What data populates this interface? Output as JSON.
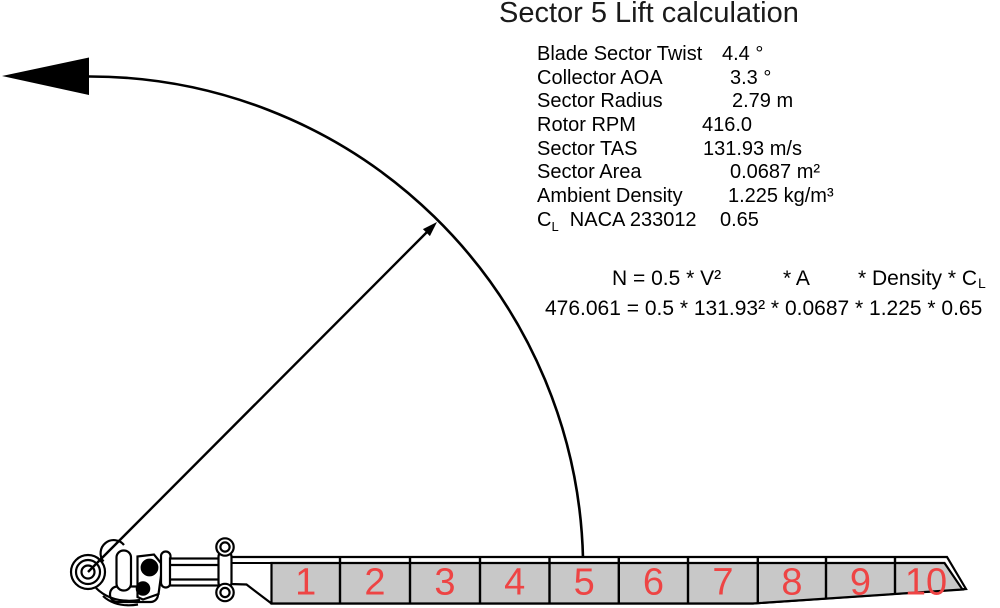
{
  "title": "Sector 5 Lift calculation",
  "parameters": {
    "rows": [
      {
        "label": "Blade Sector Twist",
        "value": "4.4 °"
      },
      {
        "label": "Collector AOA",
        "value": "3.3 °"
      },
      {
        "label": "Sector Radius",
        "value": "2.79 m"
      },
      {
        "label": "Rotor RPM",
        "value": "416.0"
      },
      {
        "label": "Sector TAS",
        "value": "131.93 m/s"
      },
      {
        "label": "Sector Area",
        "value": "0.0687 m²"
      },
      {
        "label": "Ambient Density",
        "value": "1.225 kg/m³"
      },
      {
        "label": "C",
        "label_sub": "L",
        "label_rest": "NACA 233012",
        "value": "0.65"
      }
    ]
  },
  "formula": {
    "symbolic_part1": "N = 0.5 * V²",
    "symbolic_part2": "* A",
    "symbolic_part3": "* Density * C",
    "symbolic_sub": "L",
    "numeric": "476.061 = 0.5 * 131.93² * 0.0687 * 1.225 * 0.65",
    "result_newtons": "476.061"
  },
  "blade": {
    "sectors": [
      "1",
      "2",
      "3",
      "4",
      "5",
      "6",
      "7",
      "8",
      "9",
      "10"
    ],
    "highlighted_sector": "5"
  },
  "colors": {
    "sector_fill": "#c8c8c8",
    "sector_number": "#ee4444",
    "line": "#000000",
    "background": "#ffffff"
  }
}
